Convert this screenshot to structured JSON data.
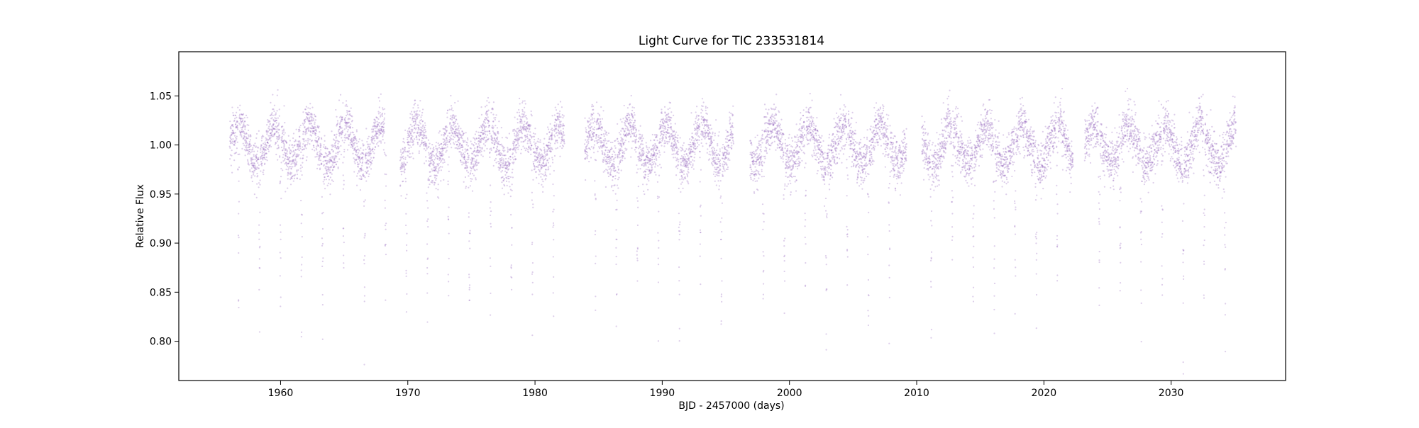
{
  "chart_data": {
    "type": "scatter",
    "title": "Light Curve for TIC 233531814",
    "xlabel": "BJD - 2457000 (days)",
    "ylabel": "Relative Flux",
    "xlim": [
      1952,
      2039
    ],
    "ylim": [
      0.76,
      1.095
    ],
    "xticks": [
      1960,
      1970,
      1980,
      1990,
      2000,
      2010,
      2020,
      2030
    ],
    "yticks": [
      0.8,
      0.85,
      0.9,
      0.95,
      1.0,
      1.05
    ],
    "xtick_labels": [
      "1960",
      "1970",
      "1980",
      "1990",
      "2000",
      "2010",
      "2020",
      "2030"
    ],
    "ytick_labels": [
      "0.80",
      "0.85",
      "0.90",
      "0.95",
      "1.00",
      "1.05"
    ],
    "grid": false,
    "marker_color": "#9467bd",
    "series": [
      {
        "segments": [
          [
            1956.0,
            1968.3
          ],
          [
            1969.4,
            1982.3
          ],
          [
            1983.9,
            1995.6
          ],
          [
            1996.9,
            2009.2
          ],
          [
            2010.4,
            2022.3
          ],
          [
            2023.2,
            2035.1
          ]
        ],
        "baseline_flux": 1.0,
        "rotational_modulation_period_days": 2.8,
        "rotational_modulation_amplitude": 0.02,
        "scatter_sigma": 0.012,
        "transit_period_days": 1.65,
        "transit_min_flux": 0.795
      }
    ]
  }
}
